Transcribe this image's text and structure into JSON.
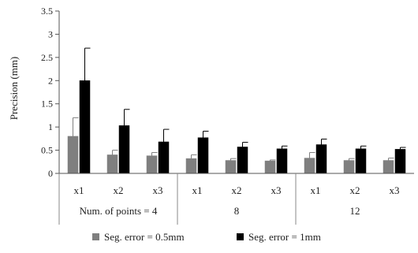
{
  "chart_data": {
    "type": "bar",
    "title": "",
    "xlabel": "",
    "ylabel": "Precision (mm)",
    "ylim": [
      0,
      3.5
    ],
    "yticks": [
      "0",
      "0.5",
      "1",
      "1.5",
      "2",
      "2.5",
      "3",
      "3.5"
    ],
    "grid": false,
    "legend_position": "bottom",
    "categories": [
      "x1",
      "x2",
      "x3",
      "x1",
      "x2",
      "x3",
      "x1",
      "x2",
      "x3"
    ],
    "groups": [
      {
        "label": "Num. of points = 4",
        "categories": [
          "x1",
          "x2",
          "x3"
        ]
      },
      {
        "label": "8",
        "categories": [
          "x1",
          "x2",
          "x3"
        ]
      },
      {
        "label": "12",
        "categories": [
          "x1",
          "x2",
          "x3"
        ]
      }
    ],
    "series": [
      {
        "name": "Seg. error = 0.5mm",
        "color": "#7f7f7f",
        "values": [
          0.8,
          0.4,
          0.38,
          0.32,
          0.28,
          0.27,
          0.33,
          0.28,
          0.28
        ],
        "errors": [
          0.4,
          0.1,
          0.07,
          0.08,
          0.04,
          0.02,
          0.12,
          0.04,
          0.05
        ]
      },
      {
        "name": "Seg. error = 1mm",
        "color": "#000000",
        "values": [
          2.0,
          1.03,
          0.68,
          0.77,
          0.57,
          0.53,
          0.62,
          0.53,
          0.52
        ],
        "errors": [
          0.7,
          0.35,
          0.27,
          0.14,
          0.1,
          0.06,
          0.12,
          0.06,
          0.04
        ]
      }
    ]
  }
}
